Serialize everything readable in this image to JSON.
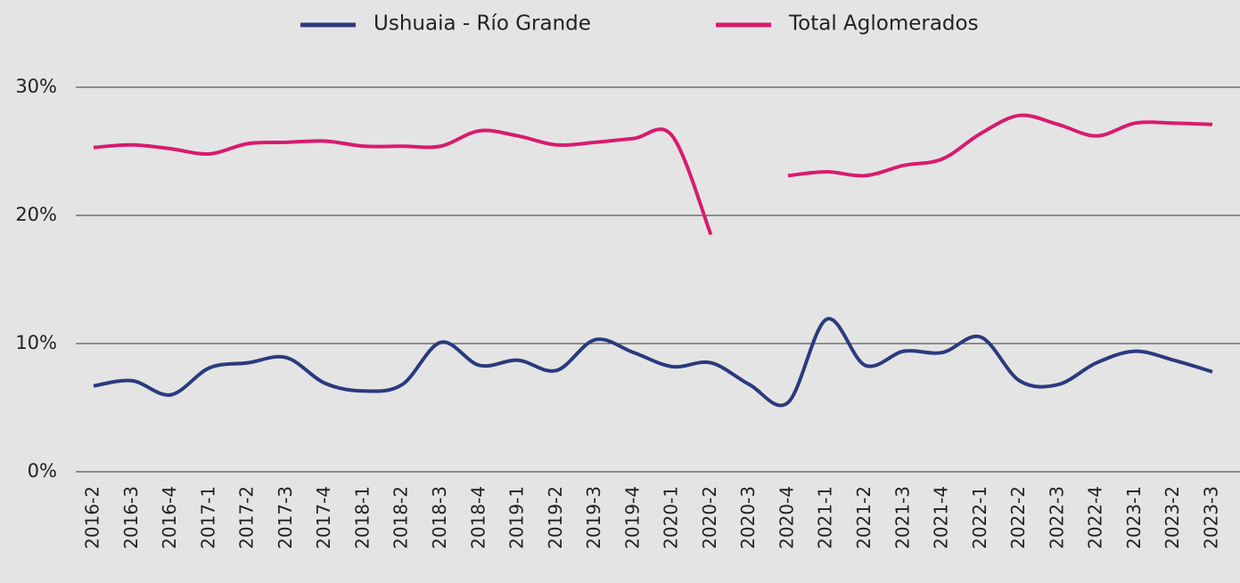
{
  "chart_data": {
    "type": "line",
    "categories": [
      "2016-2",
      "2016-3",
      "2016-4",
      "2017-1",
      "2017-2",
      "2017-3",
      "2017-4",
      "2018-1",
      "2018-2",
      "2018-3",
      "2018-4",
      "2019-1",
      "2019-2",
      "2019-3",
      "2019-4",
      "2020-1",
      "2020-2",
      "2020-3",
      "2020-4",
      "2021-1",
      "2021-2",
      "2021-3",
      "2021-4",
      "2022-1",
      "2022-2",
      "2022-3",
      "2022-4",
      "2023-1",
      "2023-2",
      "2023-3"
    ],
    "series": [
      {
        "name": "Ushuaia - Río Grande",
        "color": "#2b3a7e",
        "values": [
          6.7,
          7.1,
          6.0,
          8.1,
          8.5,
          8.9,
          6.9,
          6.3,
          6.8,
          10.1,
          8.3,
          8.7,
          7.9,
          10.3,
          9.3,
          8.2,
          8.5,
          6.8,
          5.4,
          11.9,
          8.3,
          9.4,
          9.3,
          10.5,
          7.1,
          6.8,
          8.5,
          9.4,
          8.7,
          7.8
        ]
      },
      {
        "name": "Total Aglomerados",
        "color": "#d81b6e",
        "values": [
          25.3,
          25.5,
          25.2,
          24.8,
          25.6,
          25.7,
          25.8,
          25.4,
          25.4,
          25.4,
          26.6,
          26.2,
          25.5,
          25.7,
          26.0,
          26.2,
          18.5,
          null,
          23.1,
          23.4,
          23.1,
          23.9,
          24.4,
          26.4,
          27.8,
          27.1,
          26.2,
          27.2,
          27.2,
          27.1
        ]
      }
    ],
    "ylim": [
      0,
      30
    ],
    "yticks": [
      {
        "value": 0,
        "label": "0%"
      },
      {
        "value": 10,
        "label": "10%"
      },
      {
        "value": 20,
        "label": "20%"
      },
      {
        "value": 30,
        "label": "30%"
      }
    ],
    "grid": true,
    "legend": "top"
  }
}
